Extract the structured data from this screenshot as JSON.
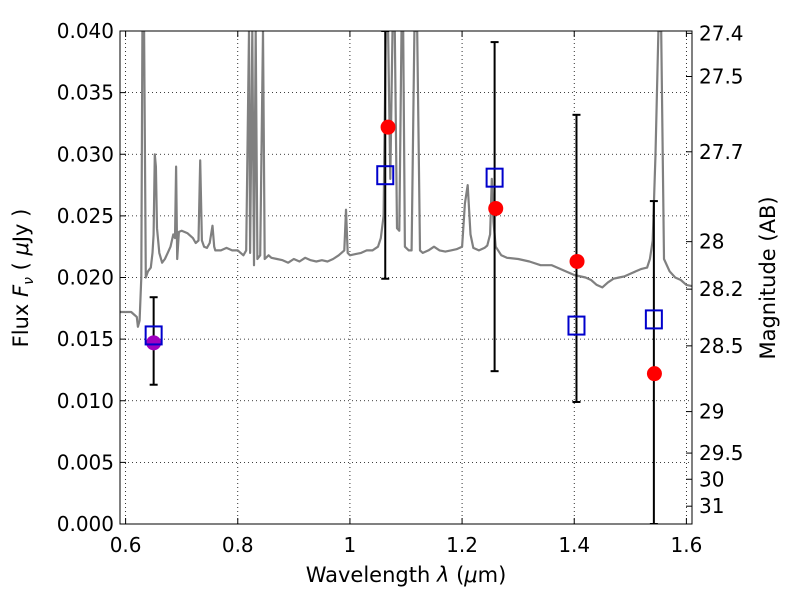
{
  "chart_data": {
    "type": "scatter",
    "x_axis": {
      "label_prefix": "Wavelength  ",
      "label_symbol": "λ",
      "label_unit_open": " (",
      "label_unit_symbol": "μ",
      "label_unit_rest": "m)",
      "range": [
        0.59,
        1.61
      ],
      "ticks": [
        0.6,
        0.8,
        1.0,
        1.2,
        1.4,
        1.6
      ],
      "tick_labels": [
        "0.6",
        "0.8",
        "1",
        "1.2",
        "1.4",
        "1.6"
      ]
    },
    "y_axis": {
      "label_prefix": "Flux  ",
      "label_symbol": "F",
      "label_subscript": "ν",
      "label_unit_open": "  ( ",
      "label_unit_symbol": "μ",
      "label_unit_rest": "Jy )",
      "range": [
        0.0,
        0.04
      ],
      "ticks": [
        0.0,
        0.005,
        0.01,
        0.015,
        0.02,
        0.025,
        0.03,
        0.035,
        0.04
      ],
      "tick_labels": [
        "0.000",
        "0.005",
        "0.010",
        "0.015",
        "0.020",
        "0.025",
        "0.030",
        "0.035",
        "0.040"
      ]
    },
    "y2_axis": {
      "label": "Magnitude (AB)",
      "tick_labels": [
        "27.4",
        "27.5",
        "27.7",
        "28",
        "28.2",
        "28.5",
        "29",
        "29.5",
        "30",
        "31"
      ]
    },
    "grid": true,
    "model_spectrum": {
      "color": "#808080",
      "points": [
        [
          0.59,
          0.0172
        ],
        [
          0.61,
          0.0172
        ],
        [
          0.615,
          0.017
        ],
        [
          0.62,
          0.0168
        ],
        [
          0.622,
          0.016
        ],
        [
          0.625,
          0.0165
        ],
        [
          0.628,
          0.02
        ],
        [
          0.63,
          0.04
        ],
        [
          0.633,
          0.04
        ],
        [
          0.636,
          0.02
        ],
        [
          0.64,
          0.0205
        ],
        [
          0.645,
          0.0208
        ],
        [
          0.648,
          0.022
        ],
        [
          0.65,
          0.0235
        ],
        [
          0.652,
          0.03
        ],
        [
          0.654,
          0.029
        ],
        [
          0.656,
          0.024
        ],
        [
          0.66,
          0.022
        ],
        [
          0.665,
          0.0212
        ],
        [
          0.67,
          0.0215
        ],
        [
          0.675,
          0.022
        ],
        [
          0.68,
          0.0225
        ],
        [
          0.685,
          0.0235
        ],
        [
          0.688,
          0.0232
        ],
        [
          0.69,
          0.029
        ],
        [
          0.692,
          0.0215
        ],
        [
          0.695,
          0.0237
        ],
        [
          0.7,
          0.0238
        ],
        [
          0.71,
          0.0236
        ],
        [
          0.72,
          0.0232
        ],
        [
          0.725,
          0.0228
        ],
        [
          0.73,
          0.023
        ],
        [
          0.733,
          0.0295
        ],
        [
          0.736,
          0.023
        ],
        [
          0.74,
          0.0225
        ],
        [
          0.745,
          0.0224
        ],
        [
          0.75,
          0.0228
        ],
        [
          0.755,
          0.0242
        ],
        [
          0.758,
          0.0225
        ],
        [
          0.76,
          0.0222
        ],
        [
          0.77,
          0.0222
        ],
        [
          0.78,
          0.0224
        ],
        [
          0.79,
          0.0222
        ],
        [
          0.8,
          0.0222
        ],
        [
          0.81,
          0.0218
        ],
        [
          0.815,
          0.0222
        ],
        [
          0.82,
          0.04
        ],
        [
          0.822,
          0.022
        ],
        [
          0.826,
          0.04
        ],
        [
          0.829,
          0.021
        ],
        [
          0.832,
          0.04
        ],
        [
          0.835,
          0.0215
        ],
        [
          0.84,
          0.0218
        ],
        [
          0.845,
          0.04
        ],
        [
          0.848,
          0.0215
        ],
        [
          0.855,
          0.0218
        ],
        [
          0.86,
          0.0216
        ],
        [
          0.87,
          0.0215
        ],
        [
          0.88,
          0.0214
        ],
        [
          0.89,
          0.0212
        ],
        [
          0.9,
          0.0215
        ],
        [
          0.91,
          0.0213
        ],
        [
          0.92,
          0.0216
        ],
        [
          0.93,
          0.0214
        ],
        [
          0.94,
          0.0213
        ],
        [
          0.95,
          0.0214
        ],
        [
          0.96,
          0.0213
        ],
        [
          0.97,
          0.0215
        ],
        [
          0.98,
          0.0218
        ],
        [
          0.99,
          0.0222
        ],
        [
          0.993,
          0.0255
        ],
        [
          0.996,
          0.022
        ],
        [
          1.0,
          0.0218
        ],
        [
          1.01,
          0.0219
        ],
        [
          1.02,
          0.022
        ],
        [
          1.03,
          0.0222
        ],
        [
          1.04,
          0.0222
        ],
        [
          1.05,
          0.0225
        ],
        [
          1.055,
          0.0232
        ],
        [
          1.06,
          0.025
        ],
        [
          1.064,
          0.04
        ],
        [
          1.068,
          0.04
        ],
        [
          1.072,
          0.028
        ],
        [
          1.076,
          0.04
        ],
        [
          1.08,
          0.04
        ],
        [
          1.084,
          0.024
        ],
        [
          1.088,
          0.0238
        ],
        [
          1.092,
          0.04
        ],
        [
          1.095,
          0.04
        ],
        [
          1.098,
          0.0225
        ],
        [
          1.105,
          0.0222
        ],
        [
          1.11,
          0.0222
        ],
        [
          1.115,
          0.04
        ],
        [
          1.12,
          0.04
        ],
        [
          1.125,
          0.0222
        ],
        [
          1.13,
          0.022
        ],
        [
          1.14,
          0.0222
        ],
        [
          1.15,
          0.0225
        ],
        [
          1.16,
          0.0222
        ],
        [
          1.17,
          0.0221
        ],
        [
          1.18,
          0.0222
        ],
        [
          1.19,
          0.0223
        ],
        [
          1.2,
          0.0225
        ],
        [
          1.205,
          0.026
        ],
        [
          1.21,
          0.0275
        ],
        [
          1.215,
          0.0235
        ],
        [
          1.22,
          0.0224
        ],
        [
          1.23,
          0.0222
        ],
        [
          1.24,
          0.0224
        ],
        [
          1.245,
          0.0226
        ],
        [
          1.25,
          0.0235
        ],
        [
          1.253,
          0.028
        ],
        [
          1.256,
          0.0245
        ],
        [
          1.26,
          0.0225
        ],
        [
          1.27,
          0.0218
        ],
        [
          1.28,
          0.0216
        ],
        [
          1.3,
          0.0215
        ],
        [
          1.32,
          0.0213
        ],
        [
          1.34,
          0.021
        ],
        [
          1.36,
          0.021
        ],
        [
          1.38,
          0.0206
        ],
        [
          1.4,
          0.0202
        ],
        [
          1.42,
          0.02
        ],
        [
          1.43,
          0.0198
        ],
        [
          1.44,
          0.0194
        ],
        [
          1.45,
          0.0192
        ],
        [
          1.46,
          0.0196
        ],
        [
          1.47,
          0.0199
        ],
        [
          1.48,
          0.02
        ],
        [
          1.49,
          0.0201
        ],
        [
          1.5,
          0.0203
        ],
        [
          1.51,
          0.0205
        ],
        [
          1.52,
          0.0207
        ],
        [
          1.53,
          0.0208
        ],
        [
          1.535,
          0.0215
        ],
        [
          1.54,
          0.023
        ],
        [
          1.545,
          0.03
        ],
        [
          1.55,
          0.04
        ],
        [
          1.555,
          0.04
        ],
        [
          1.56,
          0.0215
        ],
        [
          1.57,
          0.0205
        ],
        [
          1.58,
          0.02
        ],
        [
          1.59,
          0.0198
        ],
        [
          1.6,
          0.0194
        ],
        [
          1.61,
          0.0193
        ]
      ]
    },
    "observed": {
      "marker": "open-square",
      "color": "#0000cc",
      "points": [
        {
          "x": 0.65,
          "y": 0.0153,
          "yerr_low": 0.0113,
          "yerr_high": 0.0184
        },
        {
          "x": 1.063,
          "y": 0.0283,
          "yerr_low": 0.0199,
          "yerr_high": 0.04
        },
        {
          "x": 1.258,
          "y": 0.0281,
          "yerr_low": 0.0124,
          "yerr_high": 0.0391
        },
        {
          "x": 1.404,
          "y": 0.0161,
          "yerr_low": 0.0099,
          "yerr_high": 0.0332
        },
        {
          "x": 1.542,
          "y": 0.0166,
          "yerr_low": 0.0,
          "yerr_high": 0.0262
        }
      ]
    },
    "model_points": {
      "marker": "filled-circle",
      "color": "#ff0000",
      "overlap_color": "#a000c0",
      "points": [
        {
          "x": 0.65,
          "y": 0.0147
        },
        {
          "x": 1.068,
          "y": 0.0322
        },
        {
          "x": 1.26,
          "y": 0.0256
        },
        {
          "x": 1.405,
          "y": 0.0213
        },
        {
          "x": 1.543,
          "y": 0.0122
        }
      ]
    }
  }
}
